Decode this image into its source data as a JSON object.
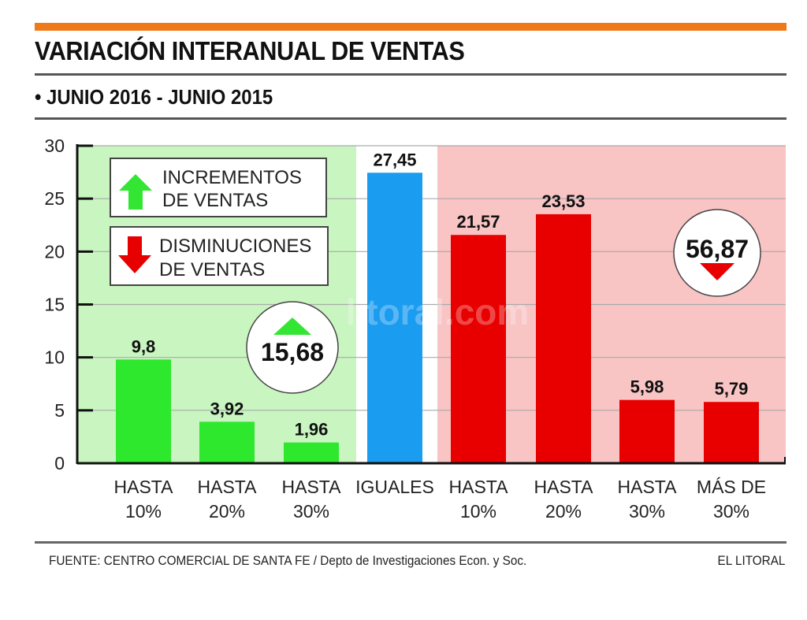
{
  "header": {
    "title": "VARIACIÓN INTERANUAL DE VENTAS",
    "subtitle": "• JUNIO 2016 - JUNIO 2015",
    "accent_color": "#f07a1a"
  },
  "legend": {
    "increase": {
      "line1": "INCREMENTOS",
      "line2": "DE VENTAS",
      "icon": "up-arrow-icon",
      "color": "#33e633"
    },
    "decrease": {
      "line1": "DISMINUCIONES",
      "line2": "DE VENTAS",
      "icon": "down-arrow-icon",
      "color": "#e60000"
    }
  },
  "badges": {
    "increase_total": "15,68",
    "decrease_total": "56,87"
  },
  "watermark": "litoral.com",
  "footer": {
    "source": "FUENTE: CENTRO COMERCIAL DE SANTA FE / Depto de Investigaciones Econ. y Soc.",
    "brand": "EL LITORAL"
  },
  "chart_data": {
    "type": "bar",
    "title": "VARIACIÓN INTERANUAL DE VENTAS",
    "subtitle": "JUNIO 2016 - JUNIO 2015",
    "xlabel": "",
    "ylabel": "",
    "ylim": [
      0,
      30
    ],
    "yticks": [
      0,
      5,
      10,
      15,
      20,
      25,
      30
    ],
    "grid": true,
    "categories": [
      [
        "HASTA",
        "10%"
      ],
      [
        "HASTA",
        "20%"
      ],
      [
        "HASTA",
        "30%"
      ],
      [
        "IGUALES",
        ""
      ],
      [
        "HASTA",
        "10%"
      ],
      [
        "HASTA",
        "20%"
      ],
      [
        "HASTA",
        "30%"
      ],
      [
        "MÁS DE",
        "30%"
      ]
    ],
    "values": [
      9.8,
      3.92,
      1.96,
      27.45,
      21.57,
      23.53,
      5.98,
      5.79
    ],
    "value_labels": [
      "9,8",
      "3,92",
      "1,96",
      "27,45",
      "21,57",
      "23,53",
      "5,98",
      "5,79"
    ],
    "groups": [
      "increase",
      "increase",
      "increase",
      "equal",
      "decrease",
      "decrease",
      "decrease",
      "decrease"
    ],
    "colors": {
      "increase": "#2ee82e",
      "equal": "#1a9cf0",
      "decrease": "#e80000",
      "increase_bg": "#c8f5c0",
      "decrease_bg": "#f8c4c4"
    },
    "annotations": [
      {
        "text": "15,68",
        "meaning": "total increments",
        "marker": "up-triangle"
      },
      {
        "text": "56,87",
        "meaning": "total decreases",
        "marker": "down-triangle"
      }
    ]
  }
}
